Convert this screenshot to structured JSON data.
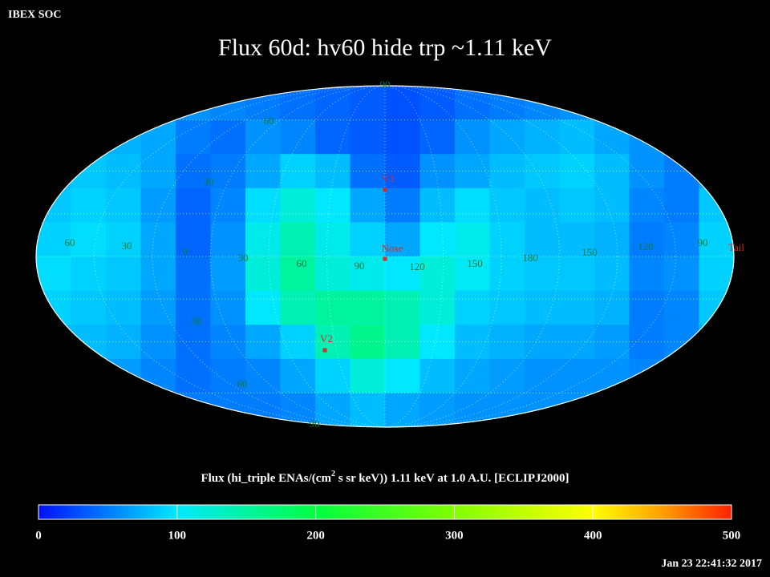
{
  "header": {
    "org": "IBEX SOC",
    "title": "Flux   60d: hv60 hide trp ~1.11 keV"
  },
  "map": {
    "grid_labels": [
      "90",
      "60",
      "30",
      "60",
      "30",
      "0",
      "30",
      "60",
      "90",
      "120",
      "150",
      "180",
      "150",
      "120",
      "90",
      "30",
      "60",
      "90"
    ],
    "markers": [
      "V1",
      "Nose",
      "V2",
      "Tail"
    ],
    "flux_rows": [
      [
        60,
        60,
        60,
        60,
        60,
        55,
        50,
        45,
        40,
        35,
        30,
        35,
        45,
        50,
        55,
        60,
        60,
        60,
        60,
        60
      ],
      [
        70,
        70,
        75,
        70,
        50,
        45,
        60,
        55,
        40,
        35,
        30,
        40,
        60,
        70,
        75,
        80,
        70,
        60,
        55,
        60
      ],
      [
        80,
        85,
        80,
        70,
        45,
        50,
        70,
        90,
        80,
        45,
        35,
        60,
        70,
        80,
        85,
        90,
        80,
        60,
        50,
        70
      ],
      [
        85,
        90,
        85,
        65,
        40,
        55,
        95,
        120,
        100,
        70,
        50,
        80,
        95,
        85,
        80,
        85,
        80,
        55,
        50,
        85
      ],
      [
        90,
        95,
        90,
        70,
        40,
        60,
        110,
        140,
        110,
        90,
        70,
        100,
        110,
        90,
        80,
        80,
        75,
        50,
        55,
        90
      ],
      [
        95,
        90,
        85,
        70,
        45,
        65,
        120,
        150,
        120,
        110,
        100,
        120,
        105,
        90,
        85,
        85,
        80,
        55,
        60,
        90
      ],
      [
        90,
        85,
        80,
        65,
        45,
        60,
        100,
        140,
        150,
        150,
        140,
        120,
        90,
        85,
        80,
        80,
        75,
        50,
        55,
        85
      ],
      [
        80,
        80,
        75,
        60,
        45,
        55,
        70,
        90,
        140,
        160,
        140,
        100,
        80,
        75,
        70,
        70,
        65,
        50,
        55,
        75
      ],
      [
        70,
        70,
        65,
        55,
        45,
        50,
        55,
        70,
        90,
        120,
        100,
        80,
        70,
        65,
        60,
        60,
        60,
        55,
        60,
        65
      ],
      [
        60,
        60,
        60,
        55,
        50,
        50,
        50,
        55,
        70,
        80,
        70,
        65,
        60,
        60,
        60,
        60,
        60,
        60,
        60,
        60
      ]
    ]
  },
  "colorbar": {
    "label_parts": [
      "Flux (hi_triple ENAs/(cm",
      "2",
      " s sr keV))  1.11 keV at 1.0 A.U. [ECLIPJ2000]"
    ],
    "lim": [
      0,
      500
    ],
    "ticks": [
      0,
      100,
      200,
      300,
      400,
      500
    ],
    "colorscale": [
      {
        "value": 0,
        "color": "#0010ff"
      },
      {
        "value": 100,
        "color": "#00e8ff"
      },
      {
        "value": 200,
        "color": "#00ff40"
      },
      {
        "value": 300,
        "color": "#80ff00"
      },
      {
        "value": 400,
        "color": "#ffff00"
      },
      {
        "value": 450,
        "color": "#ffa000"
      },
      {
        "value": 500,
        "color": "#ff2000"
      }
    ]
  },
  "timestamp": "Jan 23 22:41:32 2017"
}
